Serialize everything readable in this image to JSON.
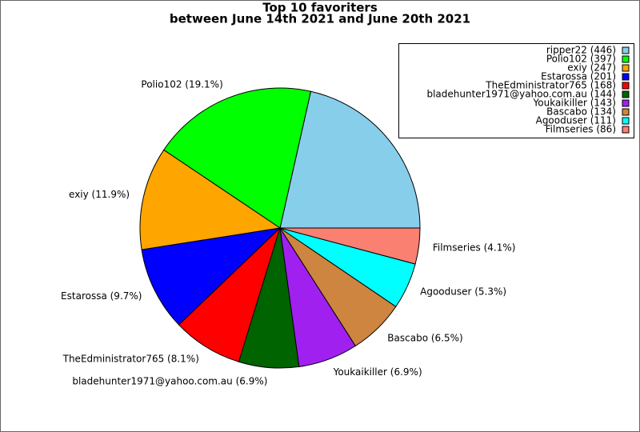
{
  "chart_data": {
    "type": "pie",
    "title": [
      "Top 10 favoriters",
      "between June 14th 2021 and June 20th 2021"
    ],
    "values": [
      446,
      397,
      247,
      201,
      168,
      144,
      143,
      134,
      111,
      86
    ],
    "value_labels": [
      "ripper22 (446)",
      "Polio102 (397)",
      "exiy (247)",
      "Estarossa (201)",
      "TheEdministrator765 (168)",
      "bladehunter1971@yahoo.com.au (144)",
      "Youkaikiller (143)",
      "Bascabo (134)",
      "Agooduser (111)",
      "Filmseries (86)"
    ],
    "slice_labels": [
      null,
      "Polio102 (19.1%)",
      "exiy (11.9%)",
      "Estarossa (9.7%)",
      "TheEdministrator765 (8.1%)",
      "bladehunter1971@yahoo.com.au (6.9%)",
      "Youkaikiller (6.9%)",
      "Bascabo (6.5%)",
      "Agooduser (5.3%)",
      "Filmseries (4.1%)"
    ],
    "colors": [
      "#87ceeb",
      "#00ff00",
      "#ffa500",
      "#0000ff",
      "#ff0000",
      "#006400",
      "#a020f0",
      "#cd853f",
      "#00ffff",
      "#fa8072"
    ],
    "legend": "upper right"
  }
}
